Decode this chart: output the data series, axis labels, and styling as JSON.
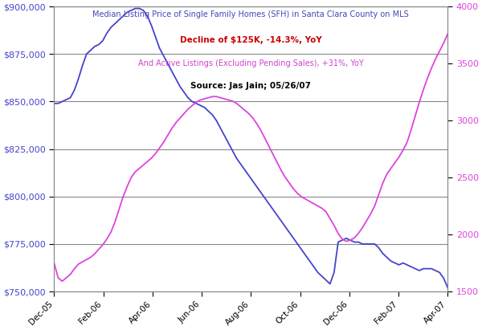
{
  "title_line1": "Median Listing Price of Single Family Homes (SFH) in Santa Clara County on MLS",
  "title_line2": "Decline of $125K, -14.3%, YoY",
  "title_line3": "And Active Listings (Excluding Pending Sales), +31%, YoY",
  "title_line4": "Source: Jas Jain; 05/26/07",
  "title_line1_color": "#4444bb",
  "title_line2_color": "#cc0000",
  "title_line3_color": "#cc44cc",
  "title_line4_color": "#000000",
  "xlabels": [
    "Dec-05",
    "Feb-06",
    "Apr-06",
    "Jun-06",
    "Aug-06",
    "Oct-06",
    "Dec-06",
    "Feb-07",
    "Apr-07"
  ],
  "left_ylim": [
    750000,
    900000
  ],
  "right_ylim": [
    1500,
    4000
  ],
  "left_yticks": [
    750000,
    775000,
    800000,
    825000,
    850000,
    875000,
    900000
  ],
  "right_yticks": [
    1500,
    2000,
    2500,
    3000,
    3500,
    4000
  ],
  "price_color": "#4444cc",
  "listings_color": "#dd44dd",
  "background_color": "#ffffff",
  "grid_color": "#888888",
  "price_data": [
    849000,
    849000,
    850000,
    851000,
    852000,
    856000,
    862000,
    869000,
    875000,
    877000,
    879000,
    880000,
    882000,
    886000,
    889000,
    891000,
    893000,
    895000,
    897000,
    898000,
    899000,
    899000,
    898000,
    895000,
    890000,
    884000,
    878000,
    874000,
    870000,
    866000,
    862000,
    858000,
    855000,
    852000,
    850000,
    849000,
    848000,
    847000,
    845000,
    843000,
    840000,
    836000,
    832000,
    828000,
    824000,
    820000,
    817000,
    814000,
    811000,
    808000,
    805000,
    802000,
    799000,
    796000,
    793000,
    790000,
    787000,
    784000,
    781000,
    778000,
    775000,
    772000,
    769000,
    766000,
    763000,
    760000,
    758000,
    756000,
    754000,
    760000,
    776000,
    777000,
    778000,
    777000,
    776000,
    776000,
    775000,
    775000,
    775000,
    775000,
    773000,
    770000,
    768000,
    766000,
    765000,
    764000,
    765000,
    764000,
    763000,
    762000,
    761000,
    762000,
    762000,
    762000,
    761000,
    760000,
    757000,
    752000
  ],
  "listings_data": [
    1750,
    1620,
    1590,
    1620,
    1650,
    1700,
    1740,
    1760,
    1780,
    1800,
    1830,
    1870,
    1910,
    1960,
    2020,
    2110,
    2220,
    2330,
    2420,
    2500,
    2550,
    2580,
    2610,
    2640,
    2670,
    2710,
    2760,
    2810,
    2870,
    2930,
    2980,
    3020,
    3060,
    3100,
    3130,
    3160,
    3180,
    3190,
    3200,
    3210,
    3210,
    3200,
    3190,
    3180,
    3170,
    3150,
    3120,
    3090,
    3060,
    3020,
    2970,
    2910,
    2840,
    2770,
    2700,
    2630,
    2560,
    2500,
    2450,
    2400,
    2360,
    2330,
    2310,
    2290,
    2270,
    2250,
    2230,
    2200,
    2140,
    2080,
    2010,
    1960,
    1940,
    1950,
    1970,
    2010,
    2060,
    2120,
    2180,
    2250,
    2350,
    2450,
    2530,
    2580,
    2630,
    2680,
    2740,
    2810,
    2920,
    3040,
    3160,
    3270,
    3370,
    3460,
    3540,
    3610,
    3680,
    3760
  ]
}
